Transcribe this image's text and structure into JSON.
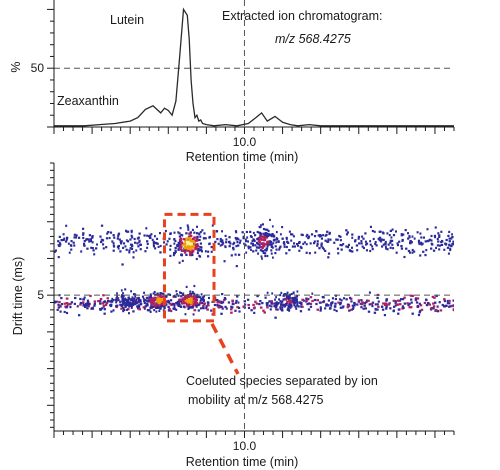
{
  "chart_data": [
    {
      "type": "line",
      "xlabel": "Retention time (min)",
      "ylabel": "%",
      "xticks": [
        10.0
      ],
      "xtick_labels": [
        "10.0"
      ],
      "yticks": [
        50
      ],
      "ytick_labels": [
        "50"
      ],
      "xlim": [
        5.0,
        15.5
      ],
      "ylim": [
        0,
        108
      ],
      "grid": "dashed reference lines at x = 10.0 and y = 50",
      "annotations": {
        "lutein": "Lutein",
        "zeaxanthin": "Zeaxanthin",
        "title_line1": "Extracted ion chromatogram:",
        "title_line2": "m/z  568.4275"
      },
      "series": [
        {
          "x": [
            5.0,
            5.4,
            5.8,
            6.2,
            6.6,
            7.0,
            7.2,
            7.4,
            7.6,
            7.8,
            7.9,
            8.0,
            8.1,
            8.2,
            8.3,
            8.4,
            8.5,
            8.55,
            8.6,
            8.65,
            8.7,
            8.75,
            8.8,
            8.85,
            8.9,
            9.0,
            9.2,
            9.5,
            9.8,
            10.1,
            10.3,
            10.45,
            10.6,
            10.8,
            11.0,
            11.2,
            11.4,
            11.7,
            12.0,
            12.5,
            13.0,
            13.5,
            14.0,
            14.5,
            15.0,
            15.5
          ],
          "y": [
            1,
            1,
            1,
            2,
            3,
            5,
            8,
            15,
            18,
            12,
            16,
            14,
            10,
            22,
            60,
            100,
            95,
            75,
            40,
            20,
            8,
            10,
            5,
            6,
            3,
            2,
            1,
            2,
            1,
            3,
            8,
            12,
            5,
            9,
            4,
            2,
            1,
            2,
            1,
            1,
            1,
            1,
            1,
            1,
            1,
            1
          ]
        }
      ]
    },
    {
      "type": "heatmap",
      "xlabel": "Retention time (min)",
      "ylabel": "Drift time (ms)",
      "xticks": [
        10.0
      ],
      "xtick_labels": [
        "10.0"
      ],
      "yticks": [
        5
      ],
      "ytick_labels": [
        "5"
      ],
      "xlim": [
        5.0,
        15.5
      ],
      "ylim": [
        1.3,
        8.6
      ],
      "grid": "dashed reference lines at x = 10.0 and y = 5",
      "colors": {
        "low": "#2a2a9a",
        "mid": "#b02060",
        "high": "#f0a000",
        "peak": "#fff0a0",
        "box": "#e8411d"
      },
      "bands": [
        {
          "drift": 6.45,
          "spread": 0.35,
          "x_start": 5.0,
          "x_end": 15.5,
          "intensity": 0.25
        },
        {
          "drift": 4.75,
          "spread": 0.22,
          "x_start": 5.0,
          "x_end": 15.5,
          "intensity": 0.35
        }
      ],
      "hotspots": [
        {
          "retention": 8.55,
          "drift": 6.4,
          "intensity": 1.0,
          "spread": 0.35
        },
        {
          "retention": 8.55,
          "drift": 4.85,
          "intensity": 0.85,
          "spread": 0.22
        },
        {
          "retention": 7.75,
          "drift": 4.85,
          "intensity": 0.8,
          "spread": 0.22
        },
        {
          "retention": 10.5,
          "drift": 6.45,
          "intensity": 0.55,
          "spread": 0.4
        },
        {
          "retention": 11.15,
          "drift": 4.85,
          "intensity": 0.45,
          "spread": 0.25
        },
        {
          "retention": 6.9,
          "drift": 4.85,
          "intensity": 0.35,
          "spread": 0.2
        }
      ],
      "highlight_box": {
        "retention": [
          7.9,
          9.2
        ],
        "drift": [
          4.3,
          7.2
        ]
      },
      "callout": {
        "line1": "Coeluted species separated by ion",
        "line2": "mobility at m/z 568.4275"
      }
    }
  ]
}
